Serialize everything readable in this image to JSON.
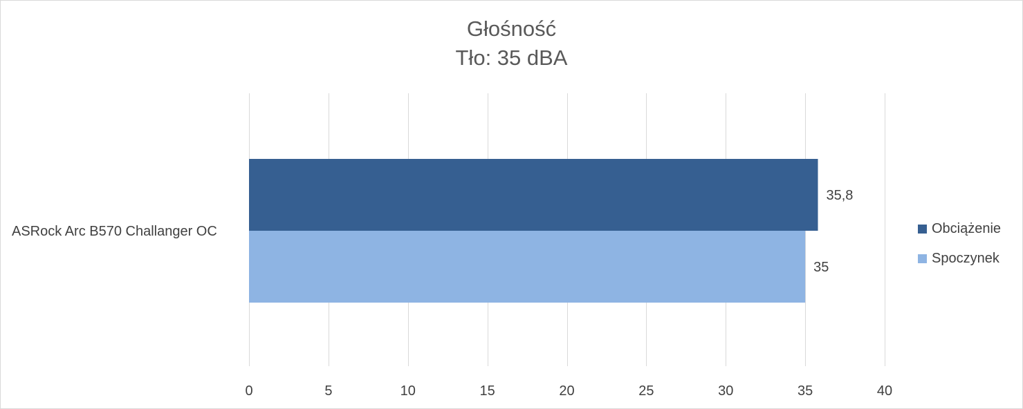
{
  "chart_data": {
    "type": "bar",
    "orientation": "horizontal",
    "title": "Głośność",
    "subtitle": "Tło: 35 dBA",
    "categories": [
      "ASRock Arc B570 Challanger OC"
    ],
    "series": [
      {
        "name": "Obciążenie",
        "values": [
          35.8
        ],
        "labels": [
          "35,8"
        ],
        "color": "#365f91"
      },
      {
        "name": "Spoczynek",
        "values": [
          35
        ],
        "labels": [
          "35"
        ],
        "color": "#8eb4e3"
      }
    ],
    "xlim": [
      0,
      40
    ],
    "xticks": [
      0,
      5,
      10,
      15,
      20,
      25,
      30,
      35,
      40
    ],
    "grid": true,
    "legend": "right",
    "xlabel": "",
    "ylabel": ""
  },
  "colors": {
    "grid": "#d9d9d9",
    "text": "#404040",
    "title": "#595959"
  }
}
